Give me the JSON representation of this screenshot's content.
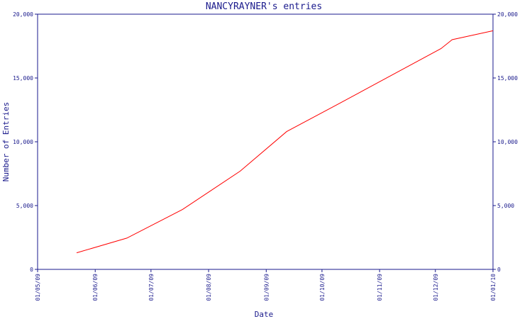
{
  "chart_data": {
    "type": "line",
    "title": "NANCYRAYNER's entries",
    "xlabel": "Date",
    "ylabel": "Number of Entries",
    "x_tick_labels": [
      "01/05/09",
      "01/06/09",
      "01/07/09",
      "01/08/09",
      "01/09/09",
      "01/10/09",
      "01/11/09",
      "01/12/09",
      "01/01/10"
    ],
    "x_tick_dates": [
      "2009-05-01",
      "2009-06-01",
      "2009-07-01",
      "2009-08-01",
      "2009-09-01",
      "2009-10-01",
      "2009-11-01",
      "2009-12-01",
      "2010-01-01"
    ],
    "y_tick_labels": [
      "0",
      "5,000",
      "10,000",
      "15,000",
      "20,000"
    ],
    "y_tick_values": [
      0,
      5000,
      10000,
      15000,
      20000
    ],
    "xlim": [
      "2009-05-01",
      "2010-01-01"
    ],
    "ylim": [
      0,
      20000
    ],
    "grid": false,
    "right_axis_ticks": true,
    "series": [
      {
        "color": "#ff0000",
        "points": [
          {
            "x": "2009-05-22",
            "y": 1300
          },
          {
            "x": "2009-06-18",
            "y": 2450
          },
          {
            "x": "2009-07-18",
            "y": 4700
          },
          {
            "x": "2009-08-18",
            "y": 7700
          },
          {
            "x": "2009-09-12",
            "y": 10800
          },
          {
            "x": "2009-10-09",
            "y": 12900
          },
          {
            "x": "2009-11-06",
            "y": 15100
          },
          {
            "x": "2009-12-04",
            "y": 17300
          },
          {
            "x": "2009-12-10",
            "y": 18000
          },
          {
            "x": "2010-01-01",
            "y": 18700
          }
        ]
      }
    ],
    "colors": {
      "axis": "#1a1a8c",
      "text": "#1a1a8c",
      "line": "#ff0000",
      "background": "#ffffff"
    }
  }
}
